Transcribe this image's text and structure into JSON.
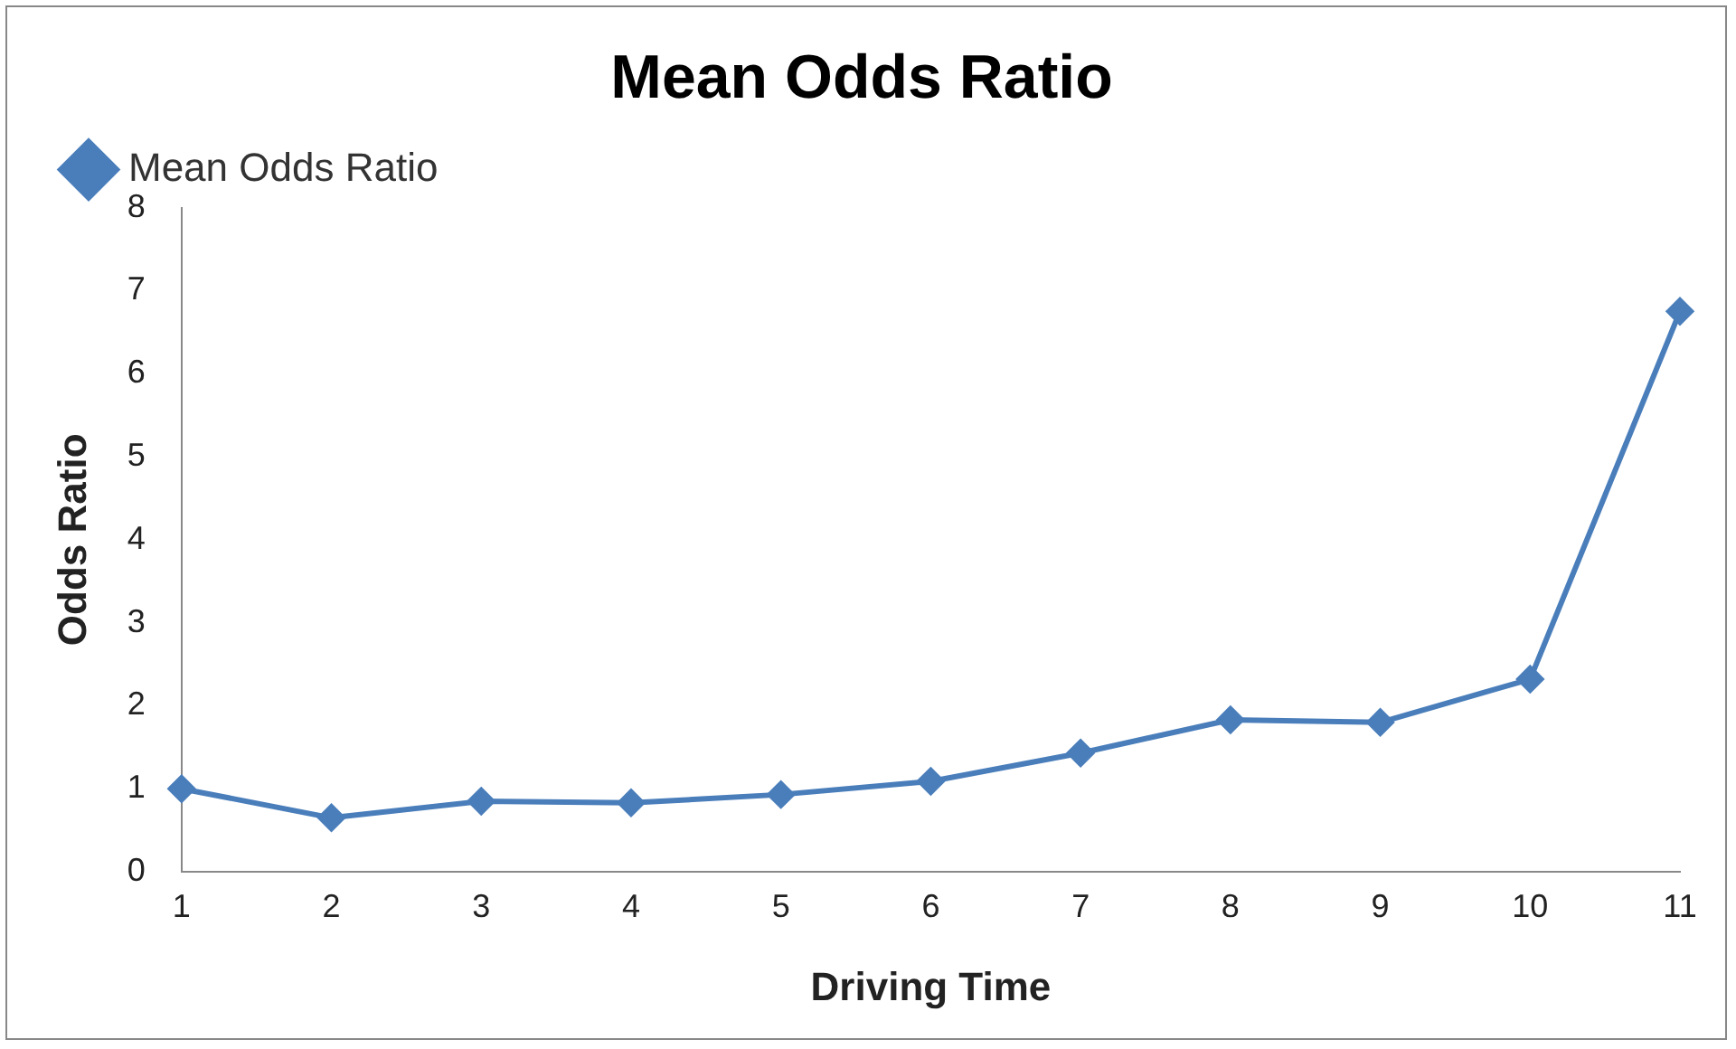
{
  "chart_data": {
    "type": "line",
    "title": "Mean Odds Ratio",
    "xlabel": "Driving Time",
    "ylabel": "Odds Ratio",
    "categories": [
      "1",
      "2",
      "3",
      "4",
      "5",
      "6",
      "7",
      "8",
      "9",
      "10",
      "11"
    ],
    "series": [
      {
        "name": "Mean Odds Ratio",
        "color": "#4a7ebb",
        "values": [
          1.0,
          0.65,
          0.85,
          0.83,
          0.93,
          1.09,
          1.43,
          1.83,
          1.8,
          2.32,
          6.75
        ]
      }
    ],
    "ylim": [
      0,
      8
    ],
    "yticks": [
      0,
      1,
      2,
      3,
      4,
      5,
      6,
      7,
      8
    ],
    "grid": false,
    "legend": "top left",
    "marker": "diamond",
    "line_style": "solid"
  }
}
